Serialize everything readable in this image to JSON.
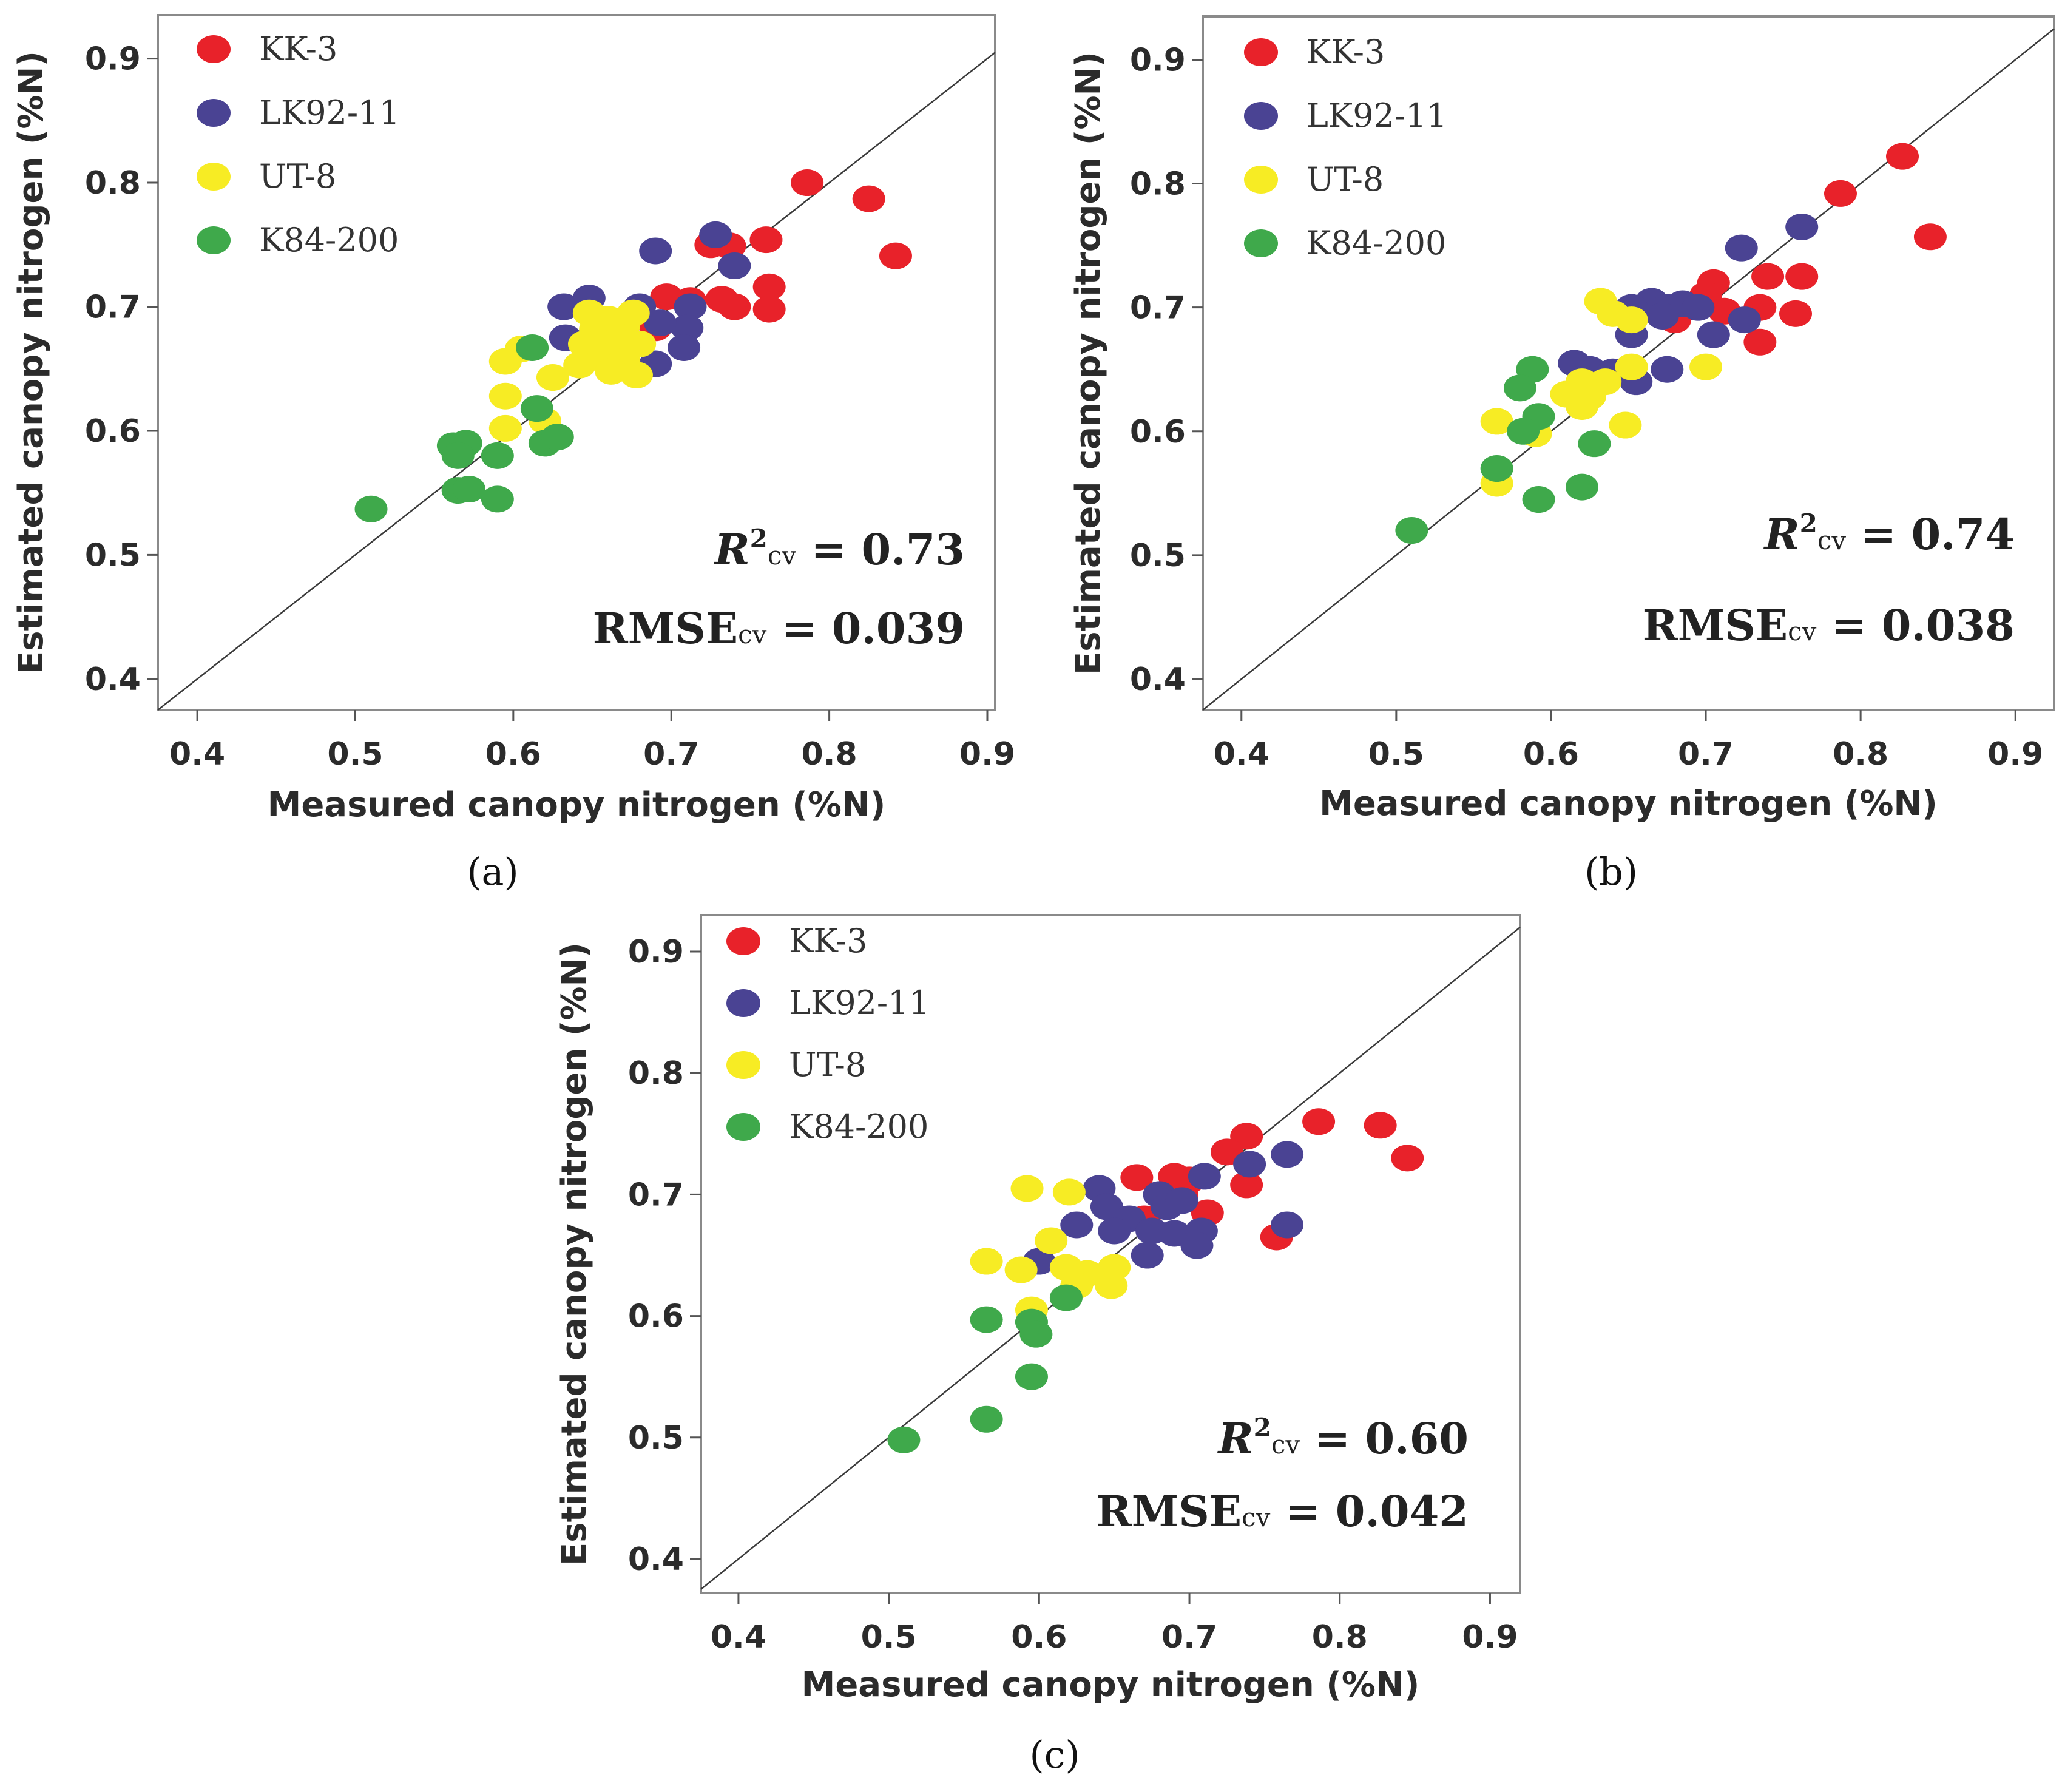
{
  "figure_captions": [
    "(a)",
    "(b)",
    "(c)"
  ],
  "chart_data": [
    {
      "type": "scatter",
      "panel": "a",
      "xlabel": "Measured canopy nitrogen (%N)",
      "ylabel": "Estimated canopy nitrogen (%N)",
      "xlim": [
        0.375,
        0.905
      ],
      "ylim": [
        0.375,
        0.935
      ],
      "x_ticks": [
        "0.4",
        "0.5",
        "0.6",
        "0.7",
        "0.8",
        "0.9"
      ],
      "y_ticks": [
        "0.4",
        "0.5",
        "0.6",
        "0.7",
        "0.8",
        "0.9"
      ],
      "legend": [
        "KK-3",
        "LK92-11",
        "UT-8",
        "K84-200"
      ],
      "legend_position": "top-left",
      "one_to_one_line": true,
      "stats": {
        "r2_symbol": "R",
        "r2_sup": "2",
        "r2_sub": "cv",
        "r2_value": " = 0.73",
        "rmse_symbol": "RMSE",
        "rmse_sub": "cv",
        "rmse_value": " = 0.039"
      },
      "series": [
        {
          "name": "KK-3",
          "color": "#e8222a",
          "points": [
            [
              0.786,
              0.8
            ],
            [
              0.825,
              0.787
            ],
            [
              0.842,
              0.741
            ],
            [
              0.76,
              0.754
            ],
            [
              0.725,
              0.75
            ],
            [
              0.737,
              0.749
            ],
            [
              0.762,
              0.716
            ],
            [
              0.762,
              0.698
            ],
            [
              0.74,
              0.7
            ],
            [
              0.732,
              0.706
            ],
            [
              0.712,
              0.705
            ],
            [
              0.697,
              0.708
            ],
            [
              0.69,
              0.683
            ]
          ]
        },
        {
          "name": "LK92-11",
          "color": "#4a4393",
          "points": [
            [
              0.728,
              0.758
            ],
            [
              0.74,
              0.733
            ],
            [
              0.69,
              0.745
            ],
            [
              0.68,
              0.7
            ],
            [
              0.712,
              0.7
            ],
            [
              0.71,
              0.683
            ],
            [
              0.708,
              0.667
            ],
            [
              0.69,
              0.654
            ],
            [
              0.648,
              0.707
            ],
            [
              0.632,
              0.7
            ],
            [
              0.633,
              0.675
            ],
            [
              0.648,
              0.664
            ],
            [
              0.66,
              0.66
            ],
            [
              0.693,
              0.687
            ]
          ]
        },
        {
          "name": "UT-8",
          "color": "#f7ec24",
          "points": [
            [
              0.648,
              0.695
            ],
            [
              0.66,
              0.69
            ],
            [
              0.67,
              0.685
            ],
            [
              0.676,
              0.695
            ],
            [
              0.652,
              0.682
            ],
            [
              0.665,
              0.672
            ],
            [
              0.68,
              0.67
            ],
            [
              0.645,
              0.67
            ],
            [
              0.655,
              0.66
            ],
            [
              0.642,
              0.653
            ],
            [
              0.67,
              0.656
            ],
            [
              0.678,
              0.645
            ],
            [
              0.605,
              0.666
            ],
            [
              0.595,
              0.656
            ],
            [
              0.625,
              0.643
            ],
            [
              0.595,
              0.628
            ],
            [
              0.62,
              0.608
            ],
            [
              0.595,
              0.602
            ],
            [
              0.662,
              0.648
            ]
          ]
        },
        {
          "name": "K84-200",
          "color": "#3fa94b",
          "points": [
            [
              0.51,
              0.537
            ],
            [
              0.562,
              0.588
            ],
            [
              0.57,
              0.59
            ],
            [
              0.565,
              0.58
            ],
            [
              0.59,
              0.58
            ],
            [
              0.615,
              0.618
            ],
            [
              0.612,
              0.667
            ],
            [
              0.62,
              0.59
            ],
            [
              0.628,
              0.595
            ],
            [
              0.565,
              0.552
            ],
            [
              0.572,
              0.553
            ],
            [
              0.59,
              0.545
            ]
          ]
        }
      ]
    },
    {
      "type": "scatter",
      "panel": "b",
      "xlabel": "Measured canopy nitrogen (%N)",
      "ylabel": "Estimated canopy nitrogen (%N)",
      "xlim": [
        0.375,
        0.925
      ],
      "ylim": [
        0.375,
        0.935
      ],
      "x_ticks": [
        "0.4",
        "0.5",
        "0.6",
        "0.7",
        "0.8",
        "0.9"
      ],
      "y_ticks": [
        "0.4",
        "0.5",
        "0.6",
        "0.7",
        "0.8",
        "0.9"
      ],
      "legend": [
        "KK-3",
        "LK92-11",
        "UT-8",
        "K84-200"
      ],
      "legend_position": "top-left",
      "one_to_one_line": true,
      "stats": {
        "r2_symbol": "R",
        "r2_sup": "2",
        "r2_sub": "cv",
        "r2_value": " = 0.74",
        "rmse_symbol": "RMSE",
        "rmse_sub": "cv",
        "rmse_value": " = 0.038"
      },
      "series": [
        {
          "name": "KK-3",
          "color": "#e8222a",
          "points": [
            [
              0.827,
              0.822
            ],
            [
              0.787,
              0.792
            ],
            [
              0.845,
              0.757
            ],
            [
              0.74,
              0.725
            ],
            [
              0.762,
              0.725
            ],
            [
              0.705,
              0.72
            ],
            [
              0.7,
              0.71
            ],
            [
              0.712,
              0.697
            ],
            [
              0.735,
              0.7
            ],
            [
              0.758,
              0.695
            ],
            [
              0.735,
              0.672
            ],
            [
              0.68,
              0.69
            ]
          ]
        },
        {
          "name": "LK92-11",
          "color": "#4a4393",
          "points": [
            [
              0.762,
              0.765
            ],
            [
              0.723,
              0.748
            ],
            [
              0.665,
              0.705
            ],
            [
              0.685,
              0.703
            ],
            [
              0.675,
              0.7
            ],
            [
              0.695,
              0.7
            ],
            [
              0.652,
              0.7
            ],
            [
              0.672,
              0.693
            ],
            [
              0.705,
              0.678
            ],
            [
              0.725,
              0.69
            ],
            [
              0.652,
              0.678
            ],
            [
              0.655,
              0.64
            ],
            [
              0.675,
              0.65
            ],
            [
              0.615,
              0.655
            ],
            [
              0.625,
              0.65
            ],
            [
              0.64,
              0.648
            ]
          ]
        },
        {
          "name": "UT-8",
          "color": "#f7ec24",
          "points": [
            [
              0.632,
              0.705
            ],
            [
              0.64,
              0.695
            ],
            [
              0.652,
              0.69
            ],
            [
              0.635,
              0.64
            ],
            [
              0.62,
              0.64
            ],
            [
              0.625,
              0.628
            ],
            [
              0.62,
              0.62
            ],
            [
              0.652,
              0.652
            ],
            [
              0.7,
              0.652
            ],
            [
              0.565,
              0.608
            ],
            [
              0.59,
              0.598
            ],
            [
              0.648,
              0.605
            ],
            [
              0.565,
              0.558
            ],
            [
              0.61,
              0.63
            ]
          ]
        },
        {
          "name": "K84-200",
          "color": "#3fa94b",
          "points": [
            [
              0.51,
              0.52
            ],
            [
              0.588,
              0.65
            ],
            [
              0.58,
              0.635
            ],
            [
              0.592,
              0.612
            ],
            [
              0.582,
              0.6
            ],
            [
              0.565,
              0.57
            ],
            [
              0.592,
              0.545
            ],
            [
              0.62,
              0.555
            ],
            [
              0.628,
              0.59
            ]
          ]
        }
      ]
    },
    {
      "type": "scatter",
      "panel": "c",
      "xlabel": "Measured canopy nitrogen (%N)",
      "ylabel": "Estimated canopy nitrogen (%N)",
      "xlim": [
        0.375,
        0.92
      ],
      "ylim": [
        0.372,
        0.93
      ],
      "x_ticks": [
        "0.4",
        "0.5",
        "0.6",
        "0.7",
        "0.8",
        "0.9"
      ],
      "y_ticks": [
        "0.4",
        "0.5",
        "0.6",
        "0.7",
        "0.8",
        "0.9"
      ],
      "legend": [
        "KK-3",
        "LK92-11",
        "UT-8",
        "K84-200"
      ],
      "legend_position": "top-left",
      "one_to_one_line": true,
      "stats": {
        "r2_symbol": "R",
        "r2_sup": "2",
        "r2_sub": "cv",
        "r2_value": " = 0.60",
        "rmse_symbol": "RMSE",
        "rmse_sub": "cv",
        "rmse_value": " = 0.042"
      },
      "series": [
        {
          "name": "KK-3",
          "color": "#e8222a",
          "points": [
            [
              0.786,
              0.76
            ],
            [
              0.827,
              0.757
            ],
            [
              0.845,
              0.73
            ],
            [
              0.738,
              0.748
            ],
            [
              0.725,
              0.735
            ],
            [
              0.738,
              0.708
            ],
            [
              0.665,
              0.714
            ],
            [
              0.69,
              0.715
            ],
            [
              0.7,
              0.712
            ],
            [
              0.695,
              0.7
            ],
            [
              0.712,
              0.685
            ],
            [
              0.67,
              0.68
            ],
            [
              0.758,
              0.665
            ]
          ]
        },
        {
          "name": "LK92-11",
          "color": "#4a4393",
          "points": [
            [
              0.765,
              0.733
            ],
            [
              0.74,
              0.725
            ],
            [
              0.71,
              0.715
            ],
            [
              0.64,
              0.705
            ],
            [
              0.645,
              0.69
            ],
            [
              0.66,
              0.68
            ],
            [
              0.68,
              0.7
            ],
            [
              0.685,
              0.69
            ],
            [
              0.695,
              0.695
            ],
            [
              0.65,
              0.67
            ],
            [
              0.675,
              0.67
            ],
            [
              0.69,
              0.668
            ],
            [
              0.708,
              0.67
            ],
            [
              0.705,
              0.658
            ],
            [
              0.625,
              0.675
            ],
            [
              0.765,
              0.675
            ],
            [
              0.672,
              0.65
            ],
            [
              0.6,
              0.645
            ]
          ]
        },
        {
          "name": "UT-8",
          "color": "#f7ec24",
          "points": [
            [
              0.592,
              0.705
            ],
            [
              0.62,
              0.702
            ],
            [
              0.608,
              0.662
            ],
            [
              0.565,
              0.645
            ],
            [
              0.588,
              0.638
            ],
            [
              0.618,
              0.64
            ],
            [
              0.632,
              0.635
            ],
            [
              0.65,
              0.64
            ],
            [
              0.648,
              0.625
            ],
            [
              0.625,
              0.625
            ],
            [
              0.595,
              0.605
            ]
          ]
        },
        {
          "name": "K84-200",
          "color": "#3fa94b",
          "points": [
            [
              0.565,
              0.597
            ],
            [
              0.595,
              0.595
            ],
            [
              0.598,
              0.585
            ],
            [
              0.618,
              0.615
            ],
            [
              0.595,
              0.55
            ],
            [
              0.565,
              0.515
            ],
            [
              0.51,
              0.498
            ]
          ]
        }
      ]
    }
  ]
}
